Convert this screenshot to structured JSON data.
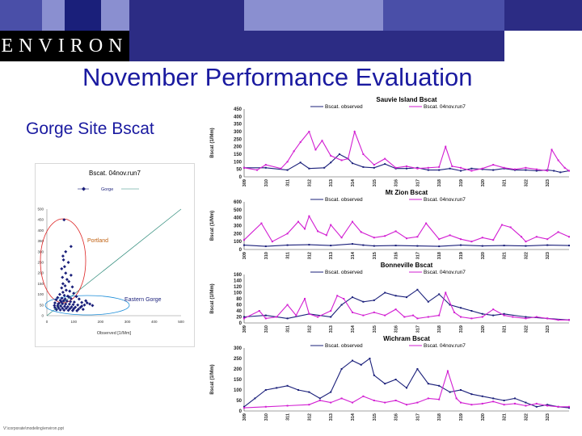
{
  "header": {
    "logo_text": "ENVIRON",
    "title": "November Performance Evaluation",
    "subtitle": "Gorge Site Bscat",
    "colors": {
      "title": "#1a1aa0",
      "navy": "#2c2c84",
      "tile_dark": "#1a1f7a",
      "tile_mid": "#4a4fa8",
      "tile_light": "#8a8fd0"
    }
  },
  "footer": {
    "path": "V:\\corporate\\modeling\\environ.ppt"
  },
  "chart_data": [
    {
      "type": "scatter",
      "title": "Bscat. 04nov.run7",
      "legend": [
        "Gorge"
      ],
      "xlabel": "Observed [1/Mm]",
      "ylabel": "Predicted [1/Mm]",
      "xlim": [
        0,
        500
      ],
      "ylim": [
        0,
        500
      ],
      "xticks": [
        0,
        100,
        200,
        300,
        400,
        500
      ],
      "yticks": [
        0,
        50,
        100,
        150,
        200,
        250,
        300,
        350,
        400,
        450,
        500
      ],
      "annotations": [
        "Portland",
        "Eastern Gorge"
      ],
      "points": [
        [
          64,
          450
        ],
        [
          90,
          325
        ],
        [
          70,
          300
        ],
        [
          60,
          280
        ],
        [
          62,
          262
        ],
        [
          80,
          250
        ],
        [
          66,
          230
        ],
        [
          55,
          220
        ],
        [
          70,
          200
        ],
        [
          90,
          190
        ],
        [
          58,
          180
        ],
        [
          75,
          170
        ],
        [
          82,
          160
        ],
        [
          60,
          150
        ],
        [
          68,
          140
        ],
        [
          95,
          135
        ],
        [
          55,
          130
        ],
        [
          72,
          120
        ],
        [
          85,
          115
        ],
        [
          60,
          110
        ],
        [
          100,
          105
        ],
        [
          48,
          100
        ],
        [
          65,
          95
        ],
        [
          78,
          92
        ],
        [
          110,
          90
        ],
        [
          40,
          85
        ],
        [
          56,
          82
        ],
        [
          90,
          80
        ],
        [
          120,
          78
        ],
        [
          35,
          75
        ],
        [
          50,
          72
        ],
        [
          62,
          70
        ],
        [
          75,
          68
        ],
        [
          88,
          66
        ],
        [
          102,
          64
        ],
        [
          130,
          62
        ],
        [
          30,
          60
        ],
        [
          45,
          58
        ],
        [
          58,
          56
        ],
        [
          70,
          55
        ],
        [
          84,
          54
        ],
        [
          98,
          52
        ],
        [
          115,
          50
        ],
        [
          140,
          50
        ],
        [
          28,
          48
        ],
        [
          40,
          46
        ],
        [
          52,
          45
        ],
        [
          66,
          44
        ],
        [
          78,
          42
        ],
        [
          92,
          41
        ],
        [
          106,
          40
        ],
        [
          125,
          39
        ],
        [
          150,
          60
        ],
        [
          30,
          38
        ],
        [
          44,
          36
        ],
        [
          58,
          35
        ],
        [
          72,
          34
        ],
        [
          86,
          33
        ],
        [
          100,
          32
        ],
        [
          118,
          31
        ],
        [
          135,
          30
        ],
        [
          36,
          28
        ],
        [
          50,
          27
        ],
        [
          64,
          26
        ],
        [
          80,
          25
        ],
        [
          96,
          24
        ],
        [
          112,
          23
        ],
        [
          130,
          45
        ],
        [
          42,
          55
        ],
        [
          54,
          65
        ],
        [
          68,
          78
        ],
        [
          82,
          88
        ],
        [
          160,
          55
        ],
        [
          170,
          48
        ],
        [
          145,
          70
        ]
      ]
    },
    {
      "type": "line",
      "title": "Sauvie Island Bscat",
      "series_names": [
        "Bscat. observed",
        "Bscat. 04nov.run7"
      ],
      "ylabel": "Bscat (1/Mm)",
      "yticks": [
        0,
        50,
        100,
        150,
        200,
        250,
        300,
        350,
        400,
        450
      ],
      "ylim": [
        0,
        450
      ],
      "xticks": [
        "309",
        "310",
        "311",
        "312",
        "313",
        "314",
        "315",
        "316",
        "317",
        "318",
        "319",
        "320",
        "321",
        "322",
        "323"
      ],
      "x_range": [
        309,
        324
      ],
      "series": [
        {
          "name": "Bscat. observed",
          "x": [
            309,
            310,
            311,
            311.6,
            312,
            312.7,
            313,
            313.4,
            313.8,
            314,
            314.5,
            315,
            315.5,
            316,
            316.5,
            317,
            317.5,
            318,
            318.5,
            319,
            319.5,
            320,
            320.5,
            321,
            321.5,
            322,
            322.5,
            323,
            323.3,
            323.6,
            324
          ],
          "values": [
            60,
            60,
            45,
            95,
            55,
            60,
            95,
            150,
            120,
            90,
            65,
            60,
            85,
            55,
            55,
            60,
            45,
            45,
            55,
            40,
            55,
            50,
            45,
            55,
            45,
            45,
            40,
            45,
            40,
            30,
            40
          ]
        },
        {
          "name": "Bscat. 04nov.run7",
          "x": [
            309,
            309.6,
            310,
            310.7,
            311,
            311.3,
            311.6,
            312,
            312.3,
            312.6,
            313,
            313.5,
            313.8,
            314.1,
            314.5,
            315,
            315.5,
            316,
            316.5,
            317,
            317.5,
            318,
            318.3,
            318.6,
            319,
            319.5,
            320,
            320.5,
            321,
            321.5,
            322,
            322.5,
            323,
            323.2,
            323.5,
            323.8,
            324
          ],
          "values": [
            60,
            45,
            80,
            55,
            100,
            170,
            230,
            300,
            180,
            240,
            140,
            110,
            120,
            300,
            150,
            80,
            120,
            60,
            70,
            55,
            60,
            65,
            200,
            70,
            60,
            40,
            55,
            80,
            60,
            50,
            60,
            50,
            40,
            180,
            110,
            60,
            40
          ]
        }
      ]
    },
    {
      "type": "line",
      "title": "Mt Zion Bscat",
      "series_names": [
        "Bscat. observed",
        "Bscat. 04nov.run7"
      ],
      "ylabel": "Bscat (1/Mm)",
      "yticks": [
        0,
        100,
        200,
        300,
        400,
        500,
        600
      ],
      "ylim": [
        0,
        600
      ],
      "xticks": [
        "309",
        "310",
        "311",
        "312",
        "313",
        "314",
        "315",
        "316",
        "317",
        "318",
        "319",
        "320",
        "321",
        "322",
        "323"
      ],
      "x_range": [
        309,
        324
      ],
      "series": [
        {
          "name": "Bscat. observed",
          "x": [
            309,
            310,
            311,
            312,
            313,
            314,
            314.5,
            315,
            316,
            317,
            318,
            319,
            320,
            321,
            322,
            323,
            324
          ],
          "values": [
            55,
            40,
            55,
            60,
            50,
            70,
            55,
            45,
            50,
            45,
            40,
            55,
            45,
            50,
            45,
            55,
            50
          ]
        },
        {
          "name": "Bscat. 04nov.run7",
          "x": [
            309,
            309.8,
            310.3,
            311,
            311.5,
            311.8,
            312,
            312.4,
            312.8,
            313,
            313.5,
            314,
            314.4,
            315,
            315.5,
            316,
            316.5,
            317,
            317.4,
            318,
            318.5,
            319,
            319.5,
            320,
            320.5,
            320.9,
            321.3,
            321.8,
            322,
            322.5,
            323,
            323.5,
            324
          ],
          "values": [
            120,
            330,
            100,
            200,
            350,
            260,
            420,
            230,
            180,
            310,
            150,
            350,
            220,
            150,
            170,
            230,
            140,
            160,
            330,
            130,
            180,
            130,
            100,
            150,
            120,
            310,
            280,
            160,
            100,
            160,
            130,
            220,
            160
          ]
        }
      ]
    },
    {
      "type": "line",
      "title": "Bonneville Bscat",
      "series_names": [
        "Bscat. observed",
        "Bscat. 04nov.run7"
      ],
      "ylabel": "Bscat (1/Mm)",
      "yticks": [
        0,
        20,
        40,
        60,
        80,
        100,
        120,
        140,
        160
      ],
      "ylim": [
        0,
        160
      ],
      "xticks": [
        "309",
        "310",
        "311",
        "312",
        "313",
        "314",
        "315",
        "316",
        "317",
        "318",
        "319",
        "320",
        "321",
        "322",
        "323"
      ],
      "x_range": [
        309,
        324
      ],
      "series": [
        {
          "name": "Bscat. observed",
          "x": [
            309,
            310,
            311,
            312,
            313,
            313.5,
            314,
            314.5,
            315,
            315.5,
            316,
            316.5,
            317,
            317.5,
            318,
            318.5,
            319,
            319.5,
            320,
            320.5,
            321,
            322,
            323,
            324
          ],
          "values": [
            20,
            25,
            15,
            30,
            20,
            60,
            85,
            70,
            75,
            100,
            90,
            85,
            110,
            70,
            95,
            60,
            50,
            40,
            30,
            25,
            30,
            20,
            15,
            10
          ]
        },
        {
          "name": "Bscat. 04nov.run7",
          "x": [
            309,
            309.7,
            310,
            310.5,
            311,
            311.4,
            311.8,
            312,
            312.4,
            313,
            313.3,
            313.6,
            314,
            314.5,
            315,
            315.5,
            316,
            316.4,
            316.8,
            317,
            317.5,
            318,
            318.3,
            318.7,
            319,
            319.5,
            320,
            320.5,
            321,
            321.4,
            322,
            322.5,
            323,
            323.5,
            324
          ],
          "values": [
            15,
            40,
            15,
            20,
            60,
            25,
            80,
            30,
            20,
            40,
            90,
            80,
            35,
            25,
            35,
            25,
            45,
            20,
            25,
            15,
            20,
            25,
            100,
            35,
            20,
            15,
            20,
            45,
            25,
            20,
            15,
            20,
            15,
            10,
            10
          ]
        }
      ]
    },
    {
      "type": "line",
      "title": "Wichram Bscat",
      "series_names": [
        "Bscat. observed",
        "Bscat. 04nov.run7"
      ],
      "ylabel": "Bscat (1/Mm)",
      "yticks": [
        0,
        50,
        100,
        150,
        200,
        250,
        300
      ],
      "ylim": [
        0,
        300
      ],
      "xticks": [
        "309",
        "310",
        "311",
        "312",
        "313",
        "314",
        "315",
        "316",
        "317",
        "318",
        "319",
        "320",
        "321",
        "322",
        "323"
      ],
      "x_range": [
        309,
        324
      ],
      "series": [
        {
          "name": "Bscat. observed",
          "x": [
            309,
            309.5,
            310,
            310.5,
            311,
            311.5,
            312,
            312.5,
            313,
            313.5,
            314,
            314.4,
            314.8,
            315,
            315.5,
            316,
            316.5,
            317,
            317.5,
            318,
            318.5,
            319,
            319.5,
            320,
            320.5,
            321,
            321.5,
            322,
            322.5,
            323,
            323.5,
            324
          ],
          "values": [
            20,
            60,
            100,
            110,
            120,
            100,
            90,
            60,
            90,
            200,
            240,
            220,
            250,
            170,
            130,
            150,
            110,
            200,
            130,
            120,
            90,
            100,
            80,
            70,
            60,
            50,
            60,
            40,
            20,
            30,
            20,
            15
          ]
        },
        {
          "name": "Bscat. 04nov.run7",
          "x": [
            309,
            310,
            311,
            312,
            312.5,
            313,
            313.5,
            314,
            314.5,
            315,
            315.5,
            316,
            316.5,
            317,
            317.5,
            318,
            318.4,
            318.8,
            319,
            319.5,
            320,
            320.5,
            321,
            321.5,
            322,
            322.5,
            323,
            323.5,
            324
          ],
          "values": [
            15,
            20,
            25,
            30,
            50,
            40,
            60,
            40,
            70,
            50,
            40,
            50,
            30,
            40,
            60,
            55,
            190,
            60,
            40,
            30,
            35,
            45,
            30,
            35,
            25,
            35,
            25,
            20,
            20
          ]
        }
      ]
    }
  ]
}
